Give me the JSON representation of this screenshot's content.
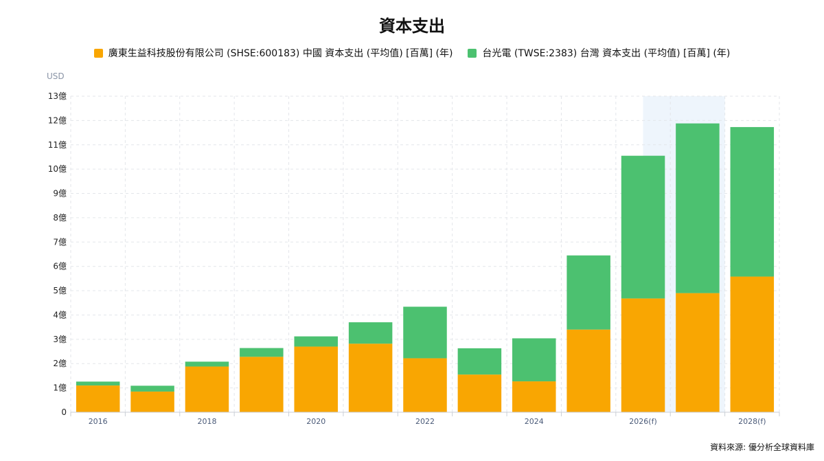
{
  "chart_data": {
    "type": "bar",
    "stacked": true,
    "title": "資本支出",
    "unit_label": "USD",
    "categories": [
      "2016",
      "2017",
      "2018",
      "2019",
      "2020",
      "2021",
      "2022",
      "2023",
      "2024",
      "2025",
      "2026(f)",
      "2027(f)",
      "2028(f)"
    ],
    "tick_labels": [
      "2016",
      "",
      "2018",
      "",
      "2020",
      "",
      "2022",
      "",
      "2024",
      "",
      "2026(f)",
      "",
      "2028(f)"
    ],
    "y_ticks": [
      "0",
      "1億",
      "2億",
      "3億",
      "4億",
      "5億",
      "6億",
      "7億",
      "8億",
      "9億",
      "10億",
      "11億",
      "12億",
      "13億"
    ],
    "ylim": [
      0,
      13
    ],
    "grid": true,
    "legend_position": "top-center",
    "forecast_highlight": {
      "from": "2026(f)",
      "to": "2027(f)",
      "color": "#eef5fc"
    },
    "series": [
      {
        "name": "廣東生益科技股份有限公司 (SHSE:600183) 中國 資本支出 (平均值) [百萬] (年)",
        "color": "#f9a602",
        "values": [
          1.1,
          0.85,
          1.88,
          2.28,
          2.7,
          2.82,
          2.22,
          1.55,
          1.27,
          3.4,
          4.68,
          4.9,
          5.58
        ]
      },
      {
        "name": "台光電 (TWSE:2383) 台灣 資本支出 (平均值) [百萬] (年)",
        "color": "#4cc170",
        "values": [
          0.16,
          0.24,
          0.2,
          0.36,
          0.42,
          0.88,
          2.12,
          1.08,
          1.77,
          3.05,
          5.87,
          6.98,
          6.15
        ]
      }
    ]
  },
  "source": "資料來源: 優分析全球資料庫"
}
